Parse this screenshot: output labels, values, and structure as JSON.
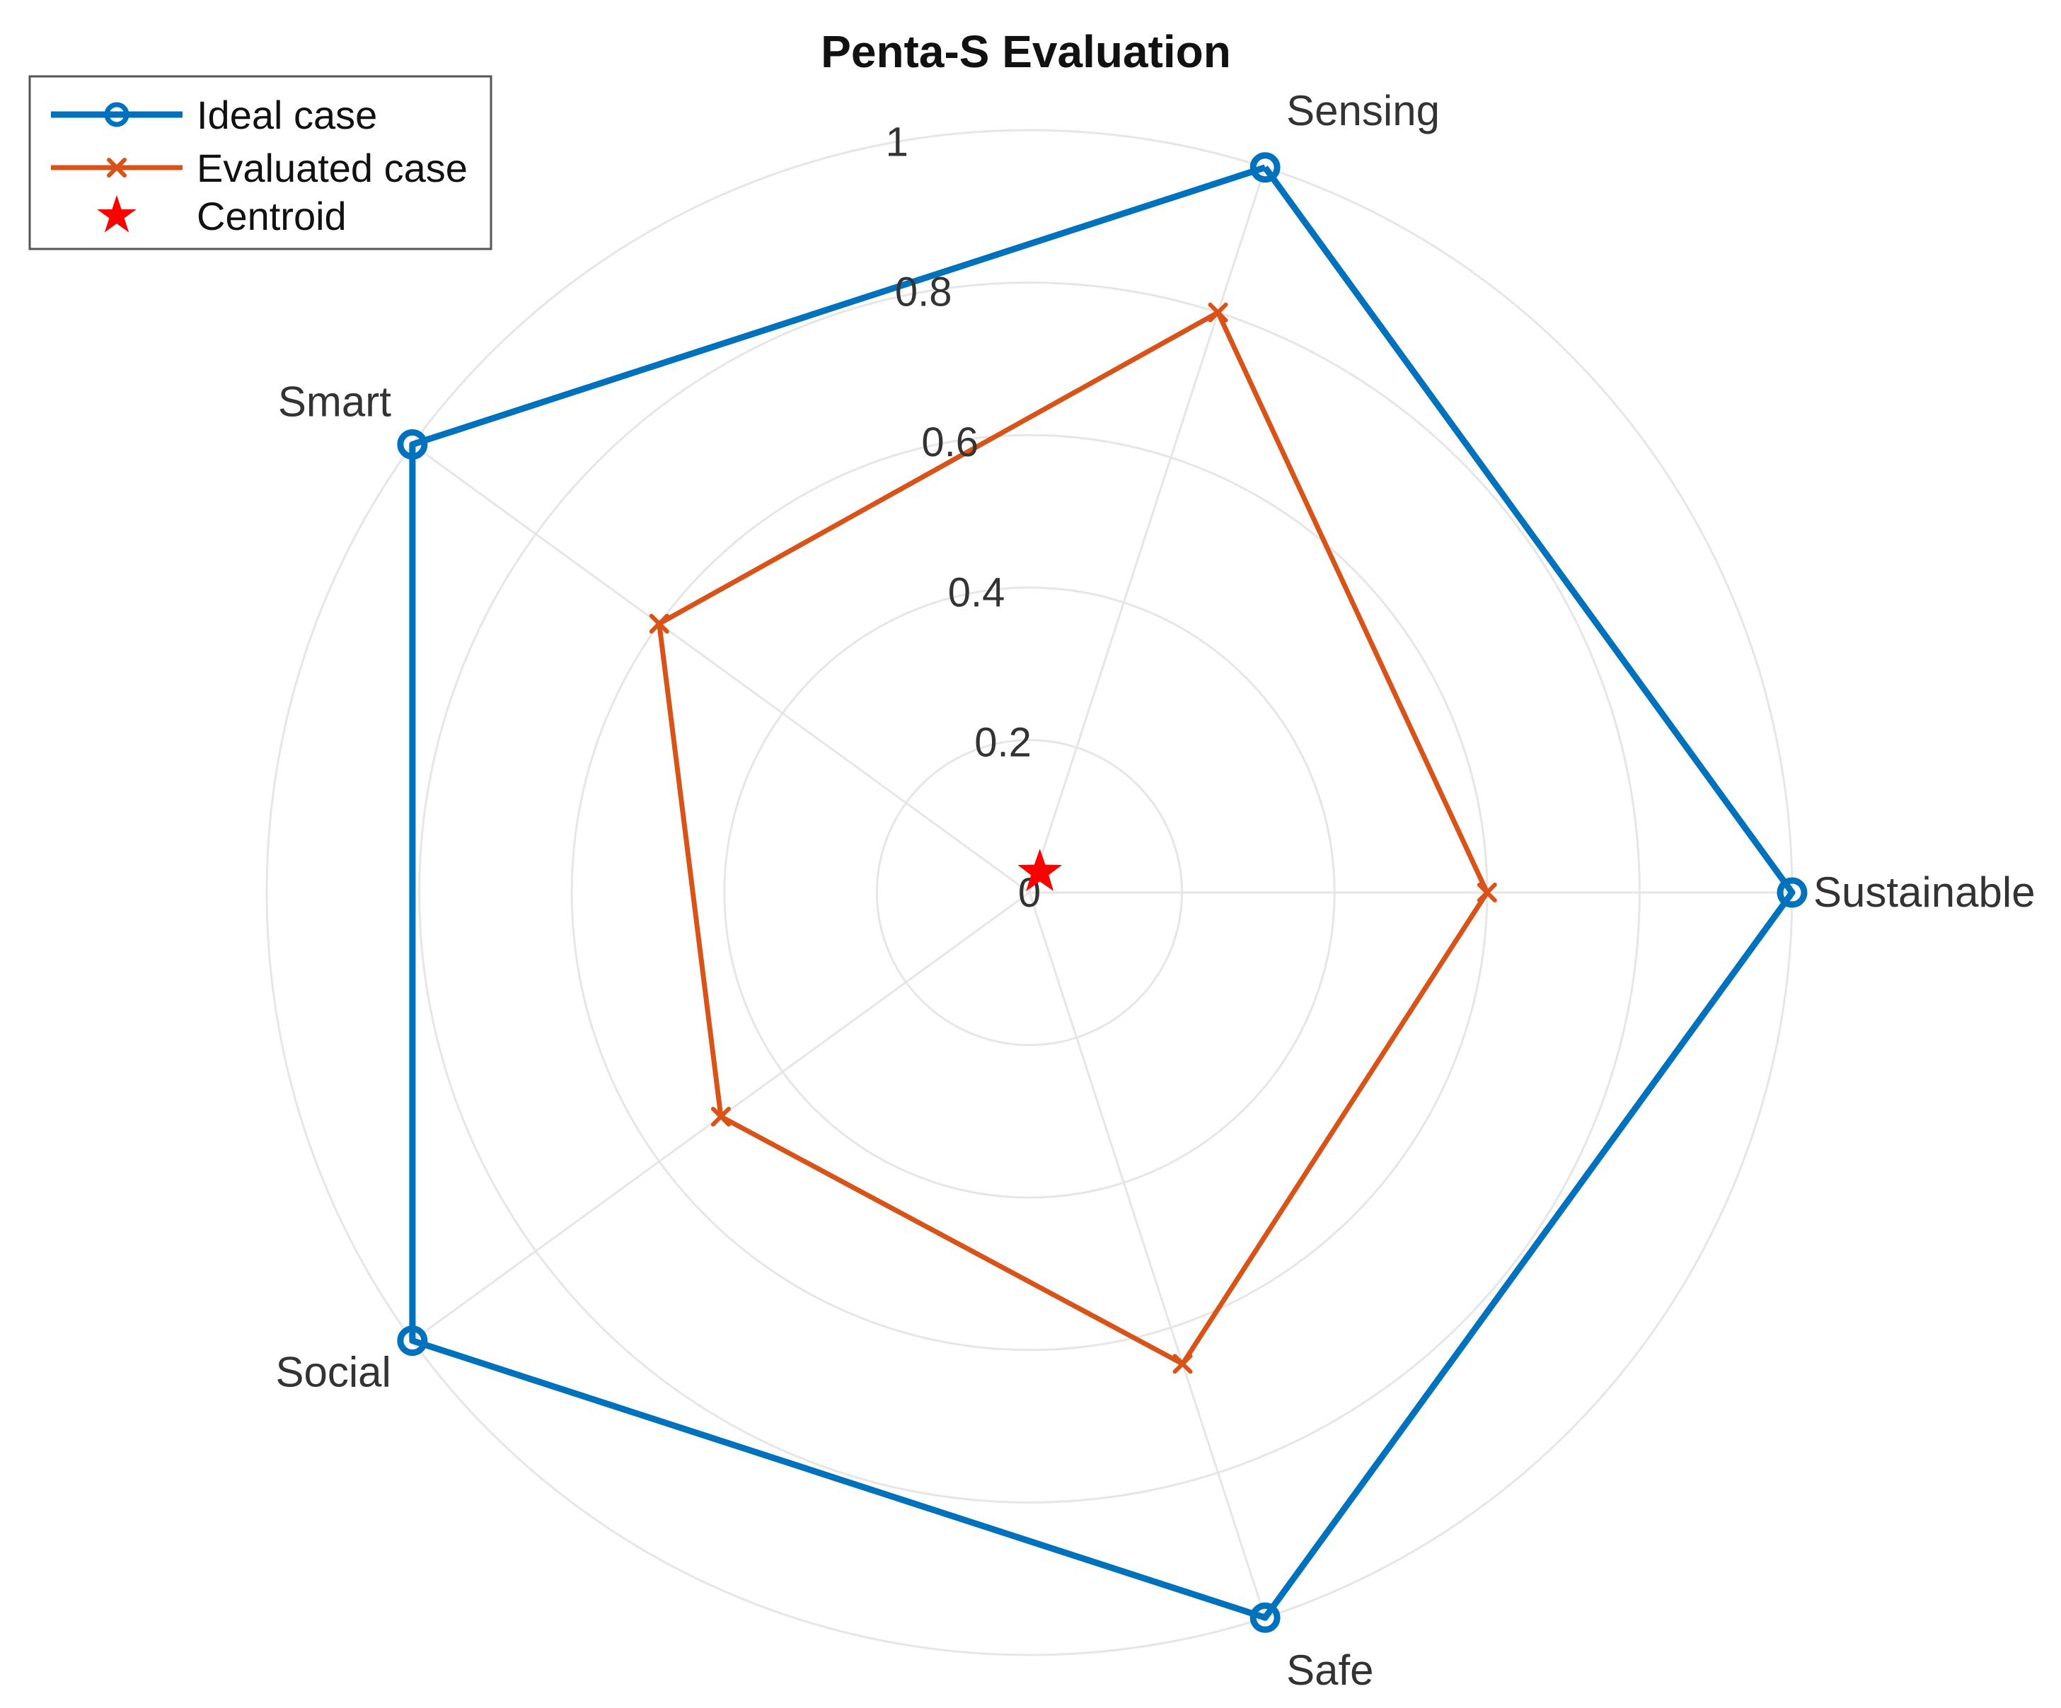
{
  "chart_data": {
    "type": "radar",
    "title": "Penta-S Evaluation",
    "axes": [
      "Sensing",
      "Sustainable",
      "Safe",
      "Social",
      "Smart"
    ],
    "radial_ticks": [
      "0",
      "0.2",
      "0.4",
      "0.6",
      "0.8",
      "1"
    ],
    "rlim": [
      0,
      1
    ],
    "grid": true,
    "legend_position": "top-left",
    "series": [
      {
        "name": "Ideal case",
        "marker": "circle",
        "color": "#0072BD",
        "values": [
          1,
          1,
          1,
          1,
          1
        ]
      },
      {
        "name": "Evaluated case",
        "marker": "x",
        "color": "#D95319",
        "values": [
          0.8,
          0.6,
          0.65,
          0.5,
          0.6
        ]
      }
    ],
    "centroid": {
      "name": "Centroid",
      "marker": "star",
      "color": "#FF0000",
      "radius": 0.03,
      "angle_deg": 63
    }
  }
}
